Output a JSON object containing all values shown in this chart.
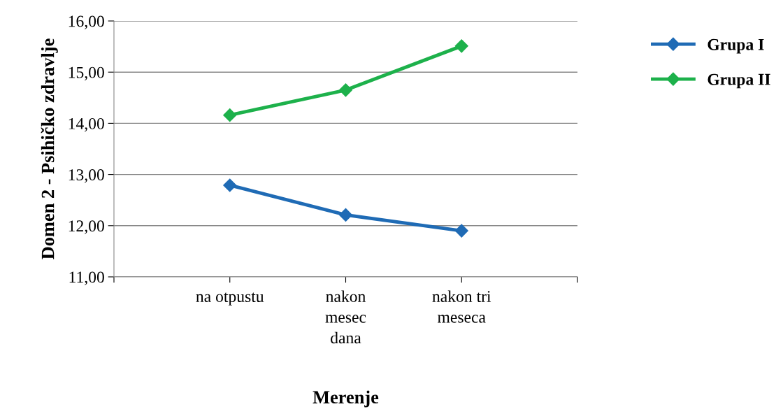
{
  "chart_data": {
    "type": "line",
    "xlabel": "Merenje",
    "ylabel": "Domen 2 - Psihičko zdravlje",
    "categories": [
      null,
      "na otpustu",
      "nakon\nmesec\ndana",
      "nakon tri\nmeseca",
      null
    ],
    "series": [
      {
        "name": "Grupa I",
        "color": "#1f6bb5",
        "values": [
          null,
          12.79,
          12.21,
          11.9,
          null
        ]
      },
      {
        "name": "Grupa II",
        "color": "#1db14b",
        "values": [
          null,
          14.16,
          14.65,
          15.51,
          null
        ]
      }
    ],
    "ylim": [
      11,
      16
    ],
    "yticks": [
      {
        "value": 11,
        "label": "11,00"
      },
      {
        "value": 12,
        "label": "12,00"
      },
      {
        "value": 13,
        "label": "13,00"
      },
      {
        "value": 14,
        "label": "14,00"
      },
      {
        "value": 15,
        "label": "15,00"
      },
      {
        "value": 16,
        "label": "16,00"
      }
    ],
    "grid": "y",
    "legend": "top right",
    "marker": "diamond",
    "line_style": "solid"
  }
}
